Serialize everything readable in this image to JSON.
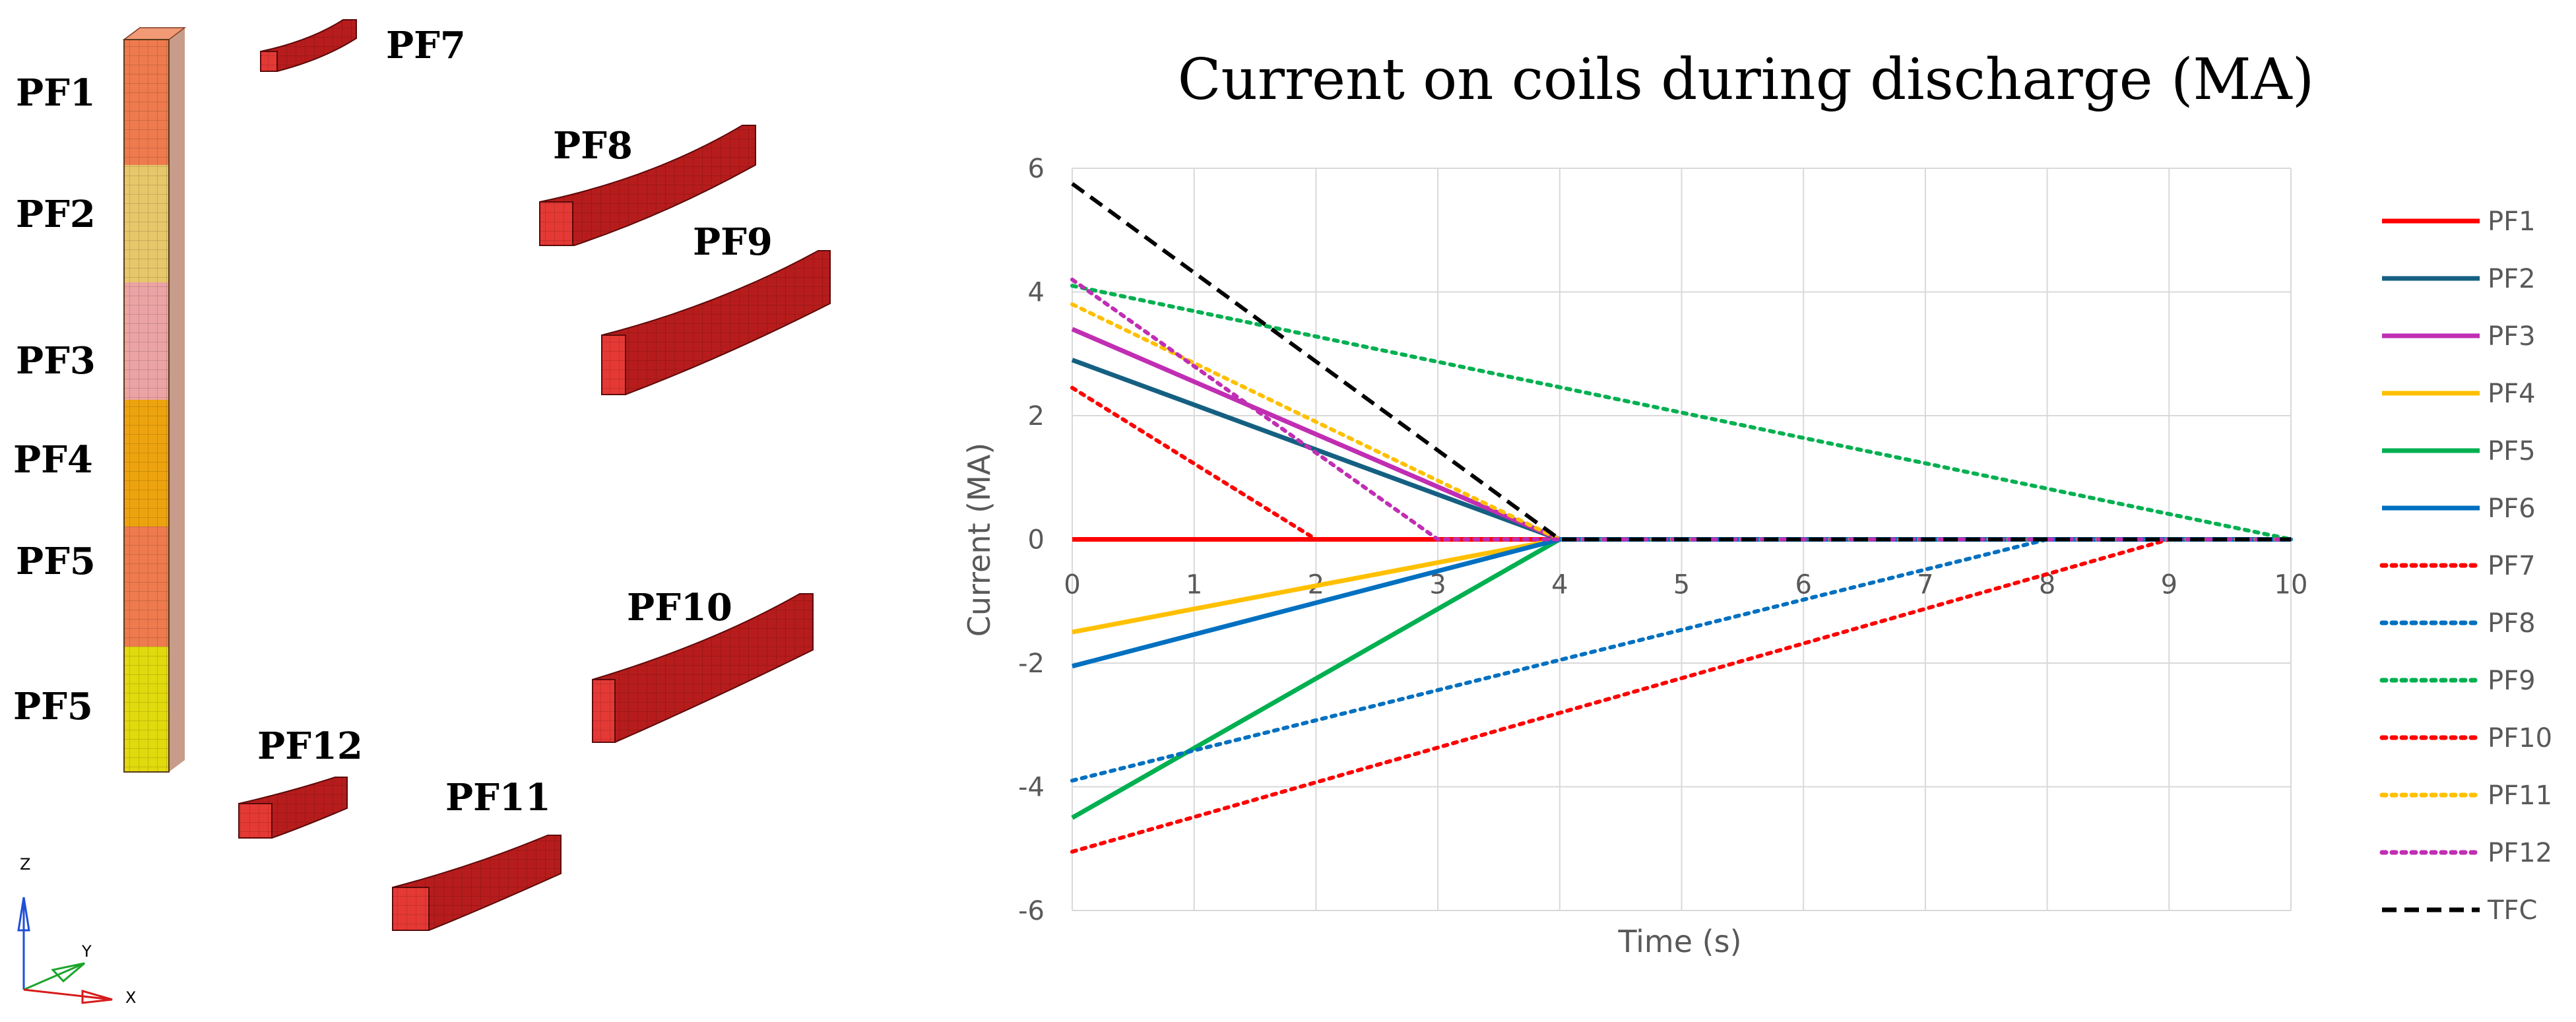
{
  "diagram": {
    "axis_labels": {
      "z": "Z",
      "y": "Y",
      "x": "X"
    },
    "column_segments": [
      {
        "label": "PF1",
        "color": "#EE7A4E"
      },
      {
        "label": "PF2",
        "color": "#E6C76A"
      },
      {
        "label": "PF3",
        "color": "#EBA3A3"
      },
      {
        "label": "PF4",
        "color": "#EDA30E"
      },
      {
        "label": "PF5",
        "color": "#EE7A4E"
      },
      {
        "label": "PF5",
        "color": "#E0DA0E"
      }
    ],
    "coil_labels": [
      "PF7",
      "PF8",
      "PF9",
      "PF10",
      "PF11",
      "PF12"
    ],
    "coil_color": "#B71C1C"
  },
  "chart_data": {
    "type": "line",
    "title": "Current on coils during discharge (MA)",
    "xlabel": "Time (s)",
    "ylabel": "Current (MA)",
    "xlim": [
      0,
      10
    ],
    "ylim": [
      -6,
      6
    ],
    "x_ticks": [
      "0",
      "1",
      "2",
      "3",
      "4",
      "5",
      "6",
      "7",
      "8",
      "9",
      "10"
    ],
    "y_ticks": [
      "6",
      "4",
      "2",
      "0",
      "-2",
      "-4",
      "-6"
    ],
    "grid": true,
    "legend_position": "right",
    "series": [
      {
        "name": "PF1",
        "color": "#FF0000",
        "style": "solid",
        "points": [
          [
            0,
            0
          ],
          [
            10,
            0
          ]
        ]
      },
      {
        "name": "PF2",
        "color": "#156082",
        "style": "solid",
        "points": [
          [
            0,
            2.9
          ],
          [
            4,
            0
          ],
          [
            10,
            0
          ]
        ]
      },
      {
        "name": "PF3",
        "color": "#C02EB3",
        "style": "solid",
        "points": [
          [
            0,
            3.4
          ],
          [
            4,
            0
          ],
          [
            10,
            0
          ]
        ]
      },
      {
        "name": "PF4",
        "color": "#FFC000",
        "style": "solid",
        "points": [
          [
            0,
            -1.5
          ],
          [
            4,
            0
          ],
          [
            10,
            0
          ]
        ]
      },
      {
        "name": "PF5",
        "color": "#00B050",
        "style": "solid",
        "points": [
          [
            0,
            -4.5
          ],
          [
            4,
            0
          ],
          [
            10,
            0
          ]
        ]
      },
      {
        "name": "PF6",
        "color": "#0070C0",
        "style": "solid",
        "points": [
          [
            0,
            -2.05
          ],
          [
            4,
            0
          ],
          [
            10,
            0
          ]
        ]
      },
      {
        "name": "PF7",
        "color": "#FF0000",
        "style": "dotted",
        "points": [
          [
            0,
            2.45
          ],
          [
            2,
            0
          ],
          [
            10,
            0
          ]
        ]
      },
      {
        "name": "PF8",
        "color": "#0070C0",
        "style": "dotted",
        "points": [
          [
            0,
            -3.9
          ],
          [
            8,
            0
          ],
          [
            10,
            0
          ]
        ]
      },
      {
        "name": "PF9",
        "color": "#00B050",
        "style": "dotted",
        "points": [
          [
            0,
            4.1
          ],
          [
            10,
            0
          ]
        ]
      },
      {
        "name": "PF10",
        "color": "#FF0000",
        "style": "dotted",
        "points": [
          [
            0,
            -5.05
          ],
          [
            9,
            0
          ],
          [
            10,
            0
          ]
        ]
      },
      {
        "name": "PF11",
        "color": "#FFC000",
        "style": "dotted",
        "points": [
          [
            0,
            3.8
          ],
          [
            4,
            0
          ],
          [
            10,
            0
          ]
        ]
      },
      {
        "name": "PF12",
        "color": "#C02EB3",
        "style": "dotted",
        "points": [
          [
            0,
            4.2
          ],
          [
            3,
            0
          ],
          [
            10,
            0
          ]
        ]
      },
      {
        "name": "TFC",
        "color": "#000000",
        "style": "dashed",
        "points": [
          [
            0,
            5.75
          ],
          [
            4,
            0
          ],
          [
            10,
            0
          ]
        ]
      }
    ]
  }
}
